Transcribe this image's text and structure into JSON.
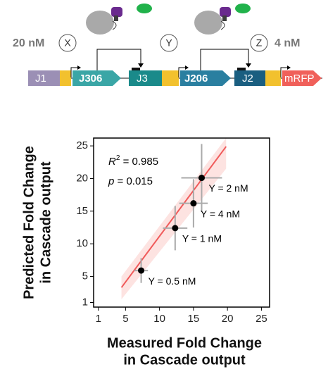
{
  "diagram": {
    "left_conc": "20 nM",
    "right_conc": "4 nM",
    "inputs": [
      "X",
      "Y",
      "Z"
    ],
    "parts": [
      "J1",
      "J306",
      "J3",
      "J206",
      "J2",
      "mRFP"
    ]
  },
  "chart_data": {
    "type": "scatter",
    "x_label": [
      "Measured Fold Change",
      "in Cascade output"
    ],
    "y_label": [
      "Predicted Fold Change",
      "in Cascade output"
    ],
    "annotation": {
      "r": "R",
      "r_sup": "2",
      "r_value": " = 0.985",
      "p": "p",
      "p_value": " = 0.015"
    },
    "xlim": [
      0.3,
      26.2
    ],
    "ylim": [
      0.3,
      26.2
    ],
    "xticks": [
      1,
      5,
      10,
      15,
      20,
      25
    ],
    "yticks": [
      1,
      5,
      10,
      15,
      20,
      25
    ],
    "series": [
      {
        "name": "Y",
        "color": "#000000",
        "x": [
          7.3,
          12.3,
          15.0,
          16.2
        ],
        "values": [
          5.9,
          12.4,
          16.2,
          20.1
        ],
        "x_err": [
          1.0,
          1.8,
          2.1,
          3.0
        ],
        "y_err": [
          1.9,
          3.4,
          3.7,
          5.2
        ],
        "point_labels": [
          "Y = 0.5 nM",
          "Y = 1 nM",
          "Y = 4 nM",
          "Y = 2 nM"
        ]
      }
    ],
    "fit": {
      "color": "#f05a5a",
      "x": [
        4.4,
        19.8
      ],
      "y": [
        3.3,
        24.9
      ]
    },
    "band": {
      "color": "#fde3e1",
      "x": [
        4.4,
        19.8
      ],
      "lower": [
        1.5,
        21.5
      ],
      "upper": [
        5.0,
        26.2
      ]
    }
  }
}
